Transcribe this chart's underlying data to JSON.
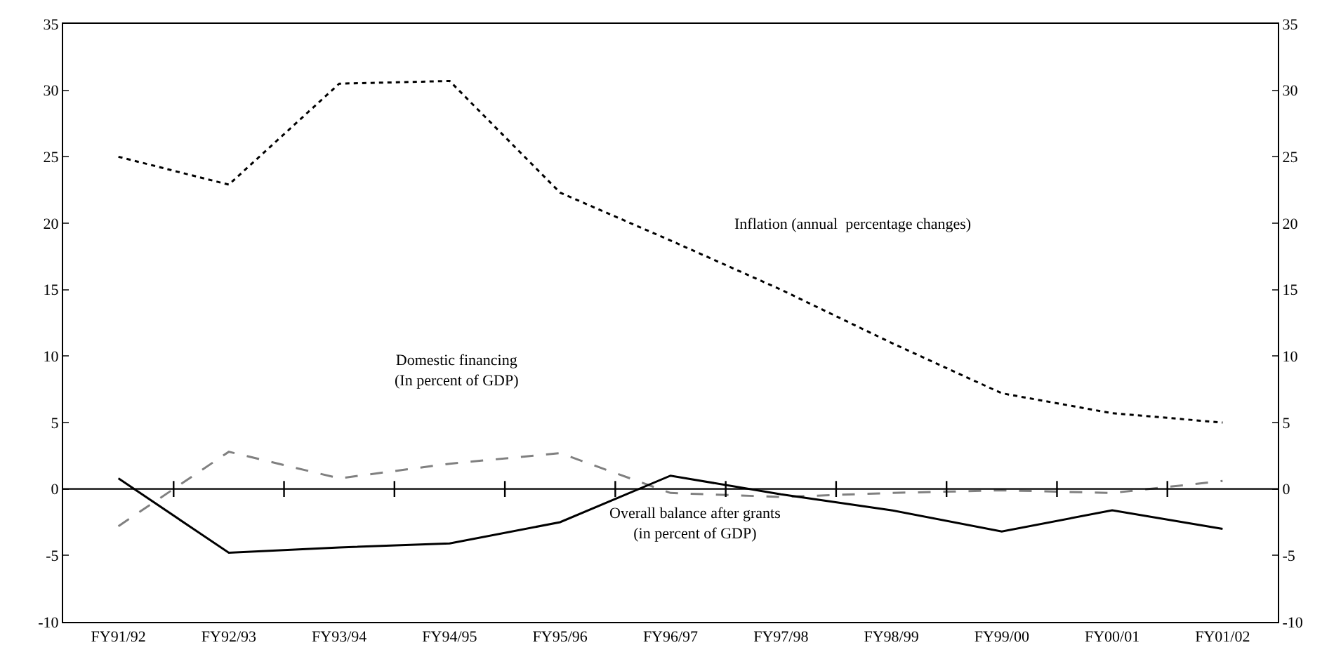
{
  "chart_data": {
    "type": "line",
    "categories": [
      "FY91/92",
      "FY92/93",
      "FY93/94",
      "FY94/95",
      "FY95/96",
      "FY96/97",
      "FY97/98",
      "FY98/99",
      "FY99/00",
      "FY00/01",
      "FY01/02"
    ],
    "series": [
      {
        "color": "#000000",
        "line_style": "dotted",
        "values": [
          25,
          22.9,
          30.5,
          30.7,
          22.3,
          18.7,
          15,
          11,
          7.2,
          5.7,
          5
        ]
      },
      {
        "color": "#808080",
        "line_style": "dashed",
        "values": [
          -2.8,
          2.8,
          0.8,
          1.9,
          2.7,
          -0.3,
          -0.6,
          -0.3,
          -0.1,
          -0.3,
          0.6
        ]
      },
      {
        "color": "#000000",
        "line_style": "solid",
        "values": [
          0.8,
          -4.8,
          -4.4,
          -4.1,
          -2.5,
          1.0,
          -0.4,
          -1.6,
          -3.2,
          -1.6,
          -3.0
        ]
      }
    ],
    "annotations": [
      "Inflation (annual  percentage changes)",
      "Domestic financing\n(In percent of GDP)",
      "Overall balance after grants\n(in percent of GDP)"
    ],
    "ylim": [
      -10,
      35
    ],
    "yticks": [
      -10,
      -5,
      0,
      5,
      10,
      15,
      20,
      25,
      30,
      35
    ],
    "y2lim": [
      -10,
      35
    ],
    "y2ticks": [
      -10,
      -5,
      0,
      5,
      10,
      15,
      20,
      25,
      30,
      35
    ],
    "ref_lines": [
      {
        "axis": "y",
        "value": 0,
        "color": "#000000"
      }
    ],
    "marker": "none"
  }
}
